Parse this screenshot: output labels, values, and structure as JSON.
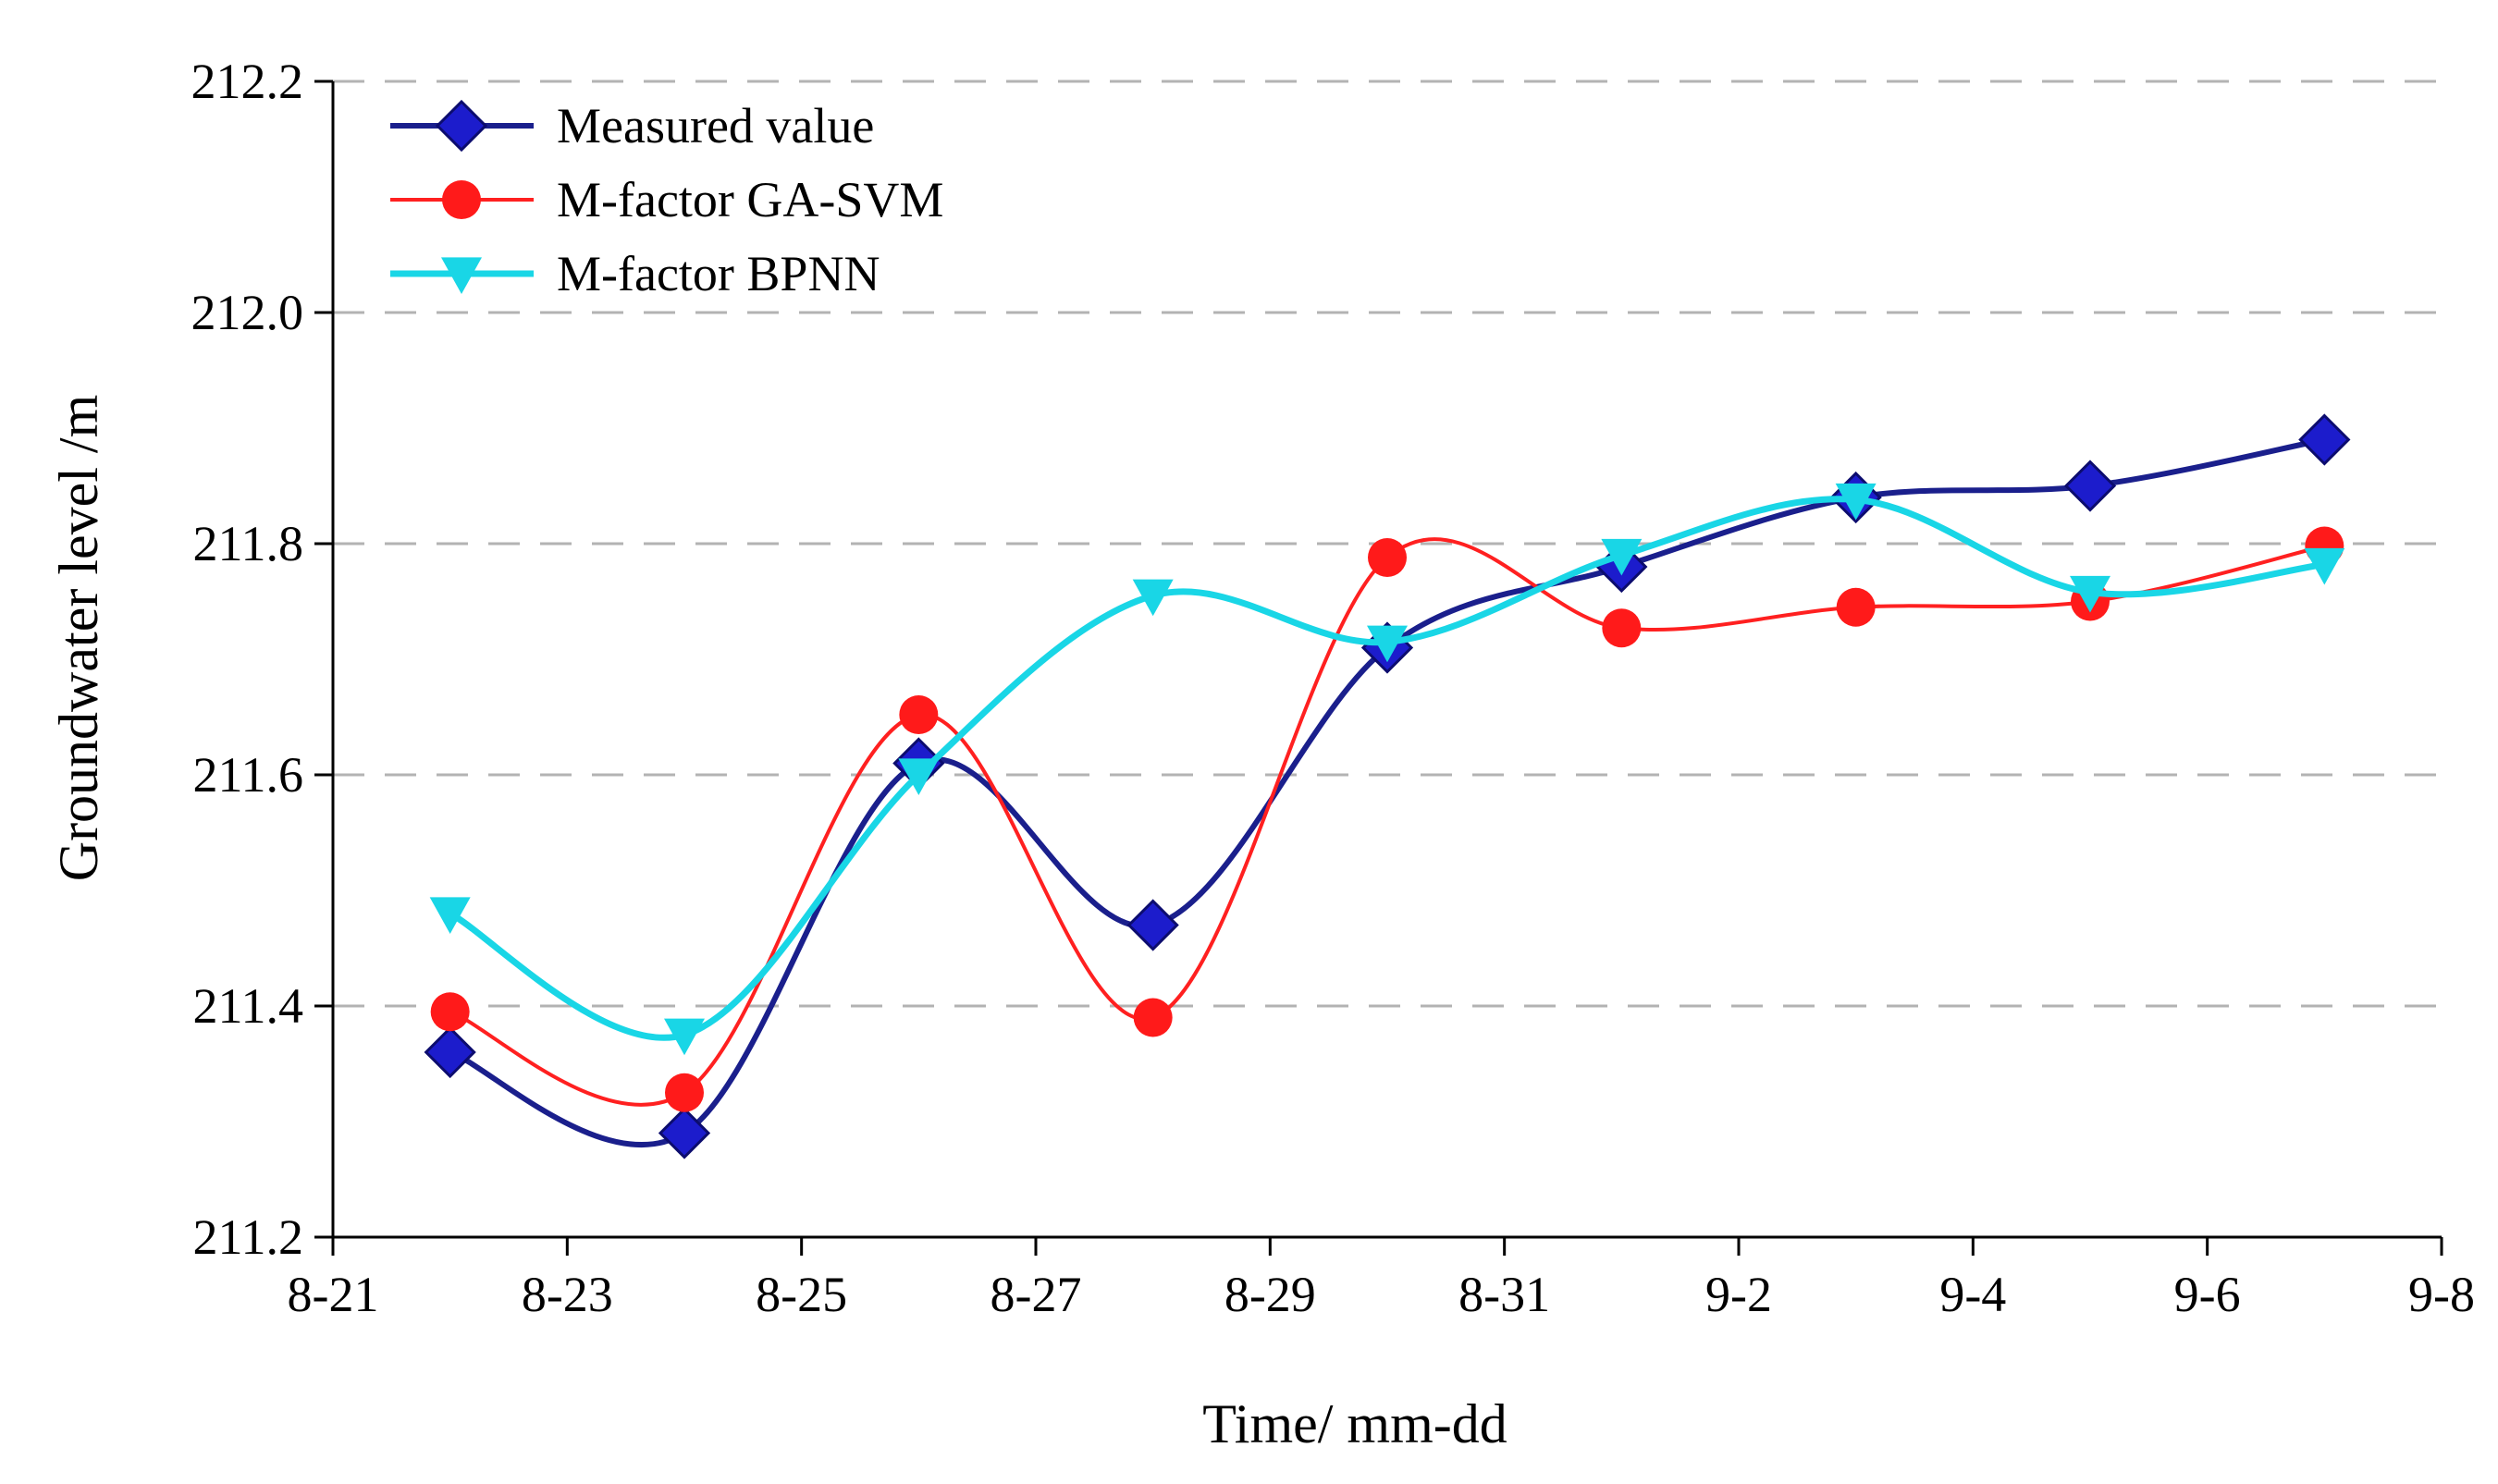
{
  "chart_data": {
    "type": "line",
    "title": "",
    "xlabel": "Time/ mm-dd",
    "ylabel": "Groundwater level /m",
    "x_ticks": [
      "8-21",
      "8-23",
      "8-25",
      "8-27",
      "8-29",
      "8-31",
      "9-2",
      "9-4",
      "9-6",
      "9-8"
    ],
    "x_tick_values": [
      0,
      2,
      4,
      6,
      8,
      10,
      12,
      14,
      16,
      18
    ],
    "y_ticks": [
      "211.2",
      "211.4",
      "211.6",
      "211.8",
      "212.0",
      "212.2"
    ],
    "y_tick_values": [
      211.2,
      211.4,
      211.6,
      211.8,
      212.0,
      212.2
    ],
    "xlim": [
      0,
      18
    ],
    "ylim": [
      211.2,
      212.2
    ],
    "grid": "horizontal dashed",
    "legend_position": "top-left",
    "x": [
      1,
      3,
      5,
      7,
      9,
      11,
      13,
      15,
      17
    ],
    "x_labels": [
      "8-22",
      "8-24",
      "8-26",
      "8-28",
      "8-30",
      "9-1",
      "9-3",
      "9-5",
      "9-7"
    ],
    "series": [
      {
        "name": "Measured value",
        "marker": "diamond",
        "color": "#1a1f8c",
        "marker_color": "#1c1ccc",
        "values": [
          211.36,
          211.29,
          211.61,
          211.47,
          211.71,
          211.78,
          211.84,
          211.85,
          211.89
        ]
      },
      {
        "name": "M-factor GA-SVM",
        "marker": "circle",
        "color": "#ff2020",
        "marker_color": "#ff1a1a",
        "values": [
          211.395,
          211.325,
          211.652,
          211.39,
          211.788,
          211.727,
          211.745,
          211.75,
          211.798
        ]
      },
      {
        "name": "M-factor BPNN",
        "marker": "triangle-down",
        "color": "#19d6e6",
        "marker_color": "#19d6e6",
        "values": [
          211.48,
          211.375,
          211.6,
          211.755,
          211.715,
          211.79,
          211.838,
          211.758,
          211.782
        ]
      }
    ]
  }
}
